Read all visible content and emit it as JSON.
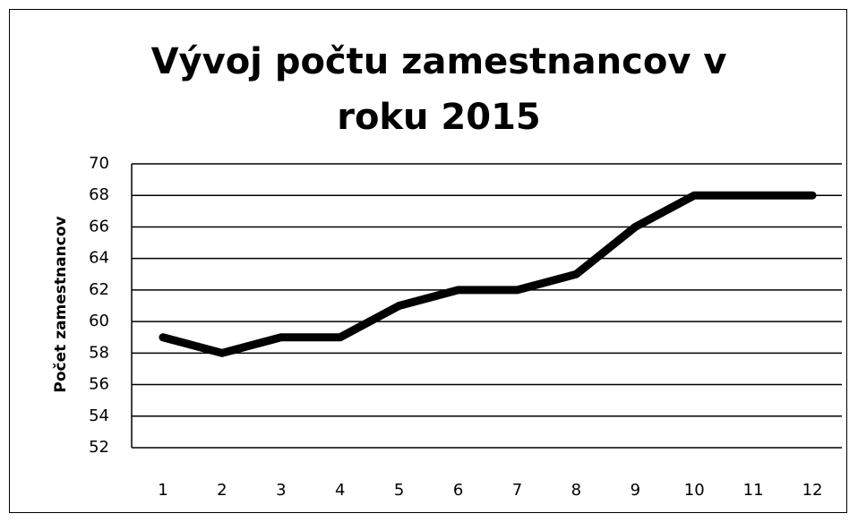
{
  "chart_data": {
    "type": "line",
    "title": "Vývoj počtu zamestnancov v roku 2015",
    "ylabel": "Počet zamestnancov",
    "categories": [
      "1",
      "2",
      "3",
      "4",
      "5",
      "6",
      "7",
      "8",
      "9",
      "10",
      "11",
      "12"
    ],
    "values": [
      59,
      58,
      59,
      59,
      61,
      62,
      62,
      63,
      66,
      68,
      68,
      68
    ],
    "color": "#000000",
    "ylim": [
      52,
      70
    ],
    "yticks": [
      52,
      54,
      56,
      58,
      60,
      62,
      64,
      66,
      68,
      70
    ],
    "grid": true
  }
}
